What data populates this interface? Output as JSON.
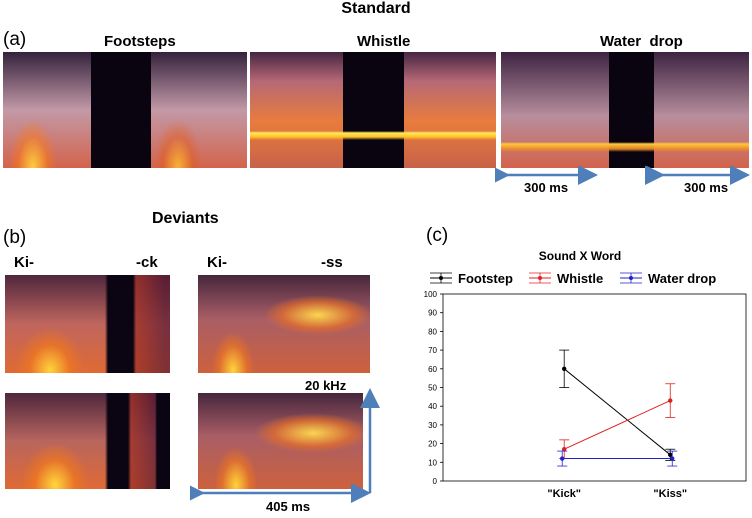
{
  "panel_a": {
    "letter": "(a)",
    "title": "Standard",
    "labels": [
      "Footsteps",
      "Whistle",
      "Water  drop"
    ],
    "scale_left": "300 ms",
    "scale_right": "300 ms"
  },
  "panel_b": {
    "letter": "(b)",
    "title": "Deviants",
    "syllables": [
      "Ki-",
      "-ck",
      "Ki-",
      "-ss"
    ],
    "freq_label": "20 kHz",
    "time_label": "405 ms"
  },
  "panel_c": {
    "letter": "(c)",
    "colors": {
      "footstep": "#000000",
      "whistle": "#e02020",
      "water": "#2222cc"
    },
    "chart_data": {
      "type": "line",
      "title": "Sound X Word",
      "categories": [
        "\"Kick\"",
        "\"Kiss\""
      ],
      "ylim": [
        0,
        100
      ],
      "yticks": [
        "0",
        "10",
        "20",
        "30",
        "40",
        "50",
        "60",
        "70",
        "80",
        "90",
        "100"
      ],
      "legend_position": "top",
      "series": [
        {
          "name": "Footstep",
          "values": [
            60,
            14
          ],
          "errors": [
            10,
            3
          ]
        },
        {
          "name": "Whistle",
          "values": [
            17,
            43
          ],
          "errors": [
            5,
            9
          ]
        },
        {
          "name": "Water drop",
          "values": [
            12,
            12
          ],
          "errors": [
            4,
            4
          ]
        }
      ]
    }
  }
}
